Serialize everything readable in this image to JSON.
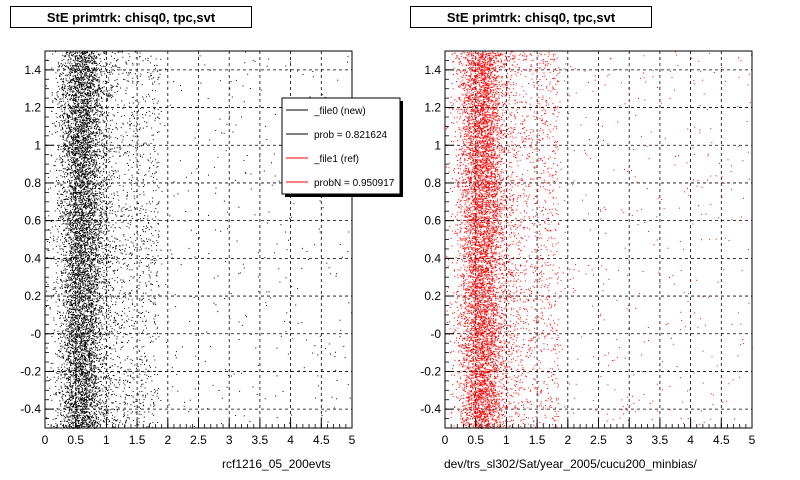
{
  "chart_data": [
    {
      "type": "scatter",
      "title": "StE primtrk: chisq0, tpc,svt",
      "xlabel": "rcf1216_05_200evts",
      "ylabel": "",
      "xlim": [
        0,
        5
      ],
      "ylim": [
        -0.5,
        1.5
      ],
      "xticks": [
        "0",
        "0.5",
        "1",
        "1.5",
        "2",
        "2.5",
        "3",
        "3.5",
        "4",
        "4.5",
        "5"
      ],
      "yticks": [
        "-0.4",
        "-0.2",
        "-0",
        "0.2",
        "0.4",
        "0.6",
        "0.8",
        "1",
        "1.2",
        "1.4"
      ],
      "grid": true,
      "series": [
        {
          "name": "_file0 (new)",
          "color": "#000000",
          "distribution": {
            "x_center": 0.6,
            "x_spread": 0.2,
            "x_max": 5,
            "y_range": [
              -0.5,
              1.5
            ],
            "density": "high"
          }
        }
      ],
      "legend": {
        "placement": "top-right",
        "entries": [
          {
            "label": "_file0 (new)",
            "color": "#000000"
          },
          {
            "label": "prob = 0.821624",
            "color": "#000000"
          },
          {
            "label": "_file1 (ref)",
            "color": "#ff0000"
          },
          {
            "label": "probN = 0.950917",
            "color": "#ff0000"
          }
        ]
      }
    },
    {
      "type": "scatter",
      "title": "StE primtrk: chisq0, tpc,svt",
      "xlabel": "dev/trs_sl302/Sat/year_2005/cucu200_minbias/",
      "ylabel": "",
      "xlim": [
        0,
        5
      ],
      "ylim": [
        -0.5,
        1.5
      ],
      "xticks": [
        "0",
        "0.5",
        "1",
        "1.5",
        "2",
        "2.5",
        "3",
        "3.5",
        "4",
        "4.5",
        "5"
      ],
      "yticks": [
        "-0.4",
        "-0.2",
        "-0",
        "0.2",
        "0.4",
        "0.6",
        "0.8",
        "1",
        "1.2",
        "1.4"
      ],
      "grid": true,
      "series": [
        {
          "name": "_file1 (ref)",
          "color": "#ff0000",
          "distribution": {
            "x_center": 0.6,
            "x_spread": 0.2,
            "x_max": 5,
            "y_range": [
              -0.5,
              1.5
            ],
            "density": "high"
          }
        }
      ]
    }
  ]
}
